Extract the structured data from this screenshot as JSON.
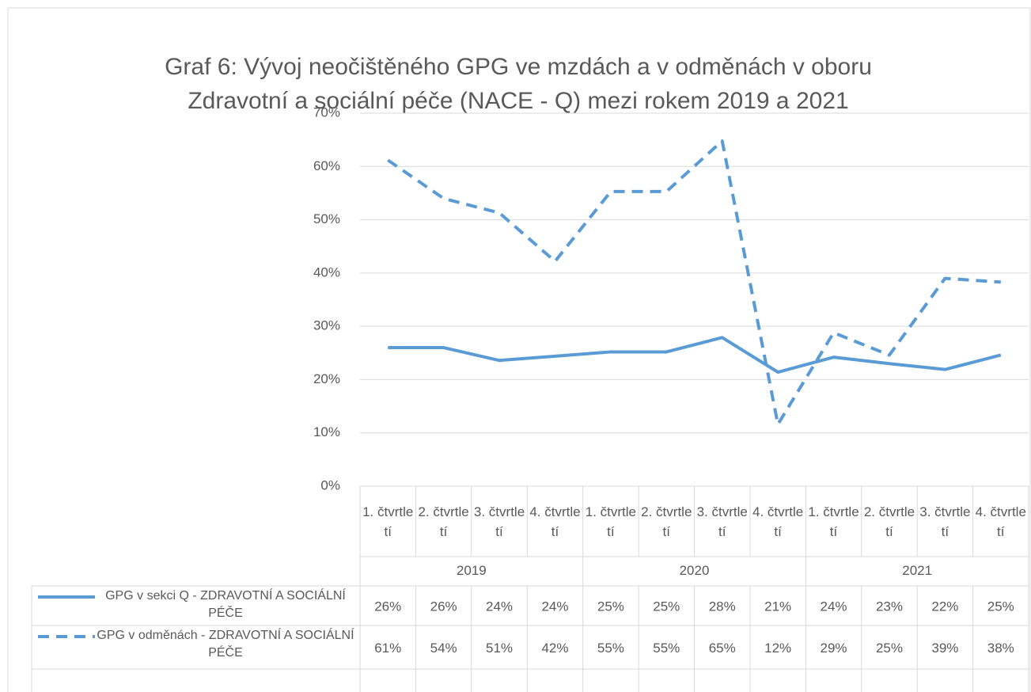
{
  "chart_data": {
    "type": "line",
    "title": [
      "Graf 6: Vývoj neočištěného GPG ve mzdách a v odměnách v oboru",
      "Zdravotní a sociální péče (NACE - Q) mezi rokem 2019 a 2021"
    ],
    "categories": [
      "1. čtvrtletí",
      "2. čtvrtletí",
      "3. čtvrtletí",
      "4. čtvrtletí",
      "1. čtvrtletí",
      "2. čtvrtletí",
      "3. čtvrtletí",
      "4. čtvrtletí",
      "1. čtvrtletí",
      "2. čtvrtletí",
      "3. čtvrtletí",
      "4. čtvrtletí"
    ],
    "groups": [
      {
        "label": "2019",
        "count": 4
      },
      {
        "label": "2020",
        "count": 4
      },
      {
        "label": "2021",
        "count": 4
      }
    ],
    "series": [
      {
        "name": "GPG v sekci Q - ZDRAVOTNÍ A SOCIÁLNÍ PÉČE",
        "color": "#5b9bd5",
        "dash": false,
        "values": [
          26,
          26,
          23.6,
          24.4,
          25.2,
          25.2,
          27.9,
          21.4,
          24.2,
          23,
          21.9,
          24.6
        ],
        "value_labels": [
          "26%",
          "26%",
          "24%",
          "24%",
          "25%",
          "25%",
          "28%",
          "21%",
          "24%",
          "23%",
          "22%",
          "25%"
        ]
      },
      {
        "name": "GPG v odměnách - ZDRAVOTNÍ A SOCIÁLNÍ PÉČE",
        "color": "#5b9bd5",
        "dash": true,
        "values": [
          61.2,
          54,
          51.3,
          42.2,
          55.3,
          55.3,
          64.8,
          11.6,
          28.8,
          24.6,
          39,
          38.3
        ],
        "value_labels": [
          "61%",
          "54%",
          "51%",
          "42%",
          "55%",
          "55%",
          "65%",
          "12%",
          "29%",
          "25%",
          "39%",
          "38%"
        ]
      }
    ],
    "ylim": [
      0,
      70
    ],
    "yticks": [
      {
        "value": 0,
        "label": "0%"
      },
      {
        "value": 10,
        "label": "10%"
      },
      {
        "value": 20,
        "label": "20%"
      },
      {
        "value": 30,
        "label": "30%"
      },
      {
        "value": 40,
        "label": "40%"
      },
      {
        "value": 50,
        "label": "50%"
      },
      {
        "value": 60,
        "label": "60%"
      },
      {
        "value": 70,
        "label": "70%"
      }
    ],
    "grid": true
  }
}
